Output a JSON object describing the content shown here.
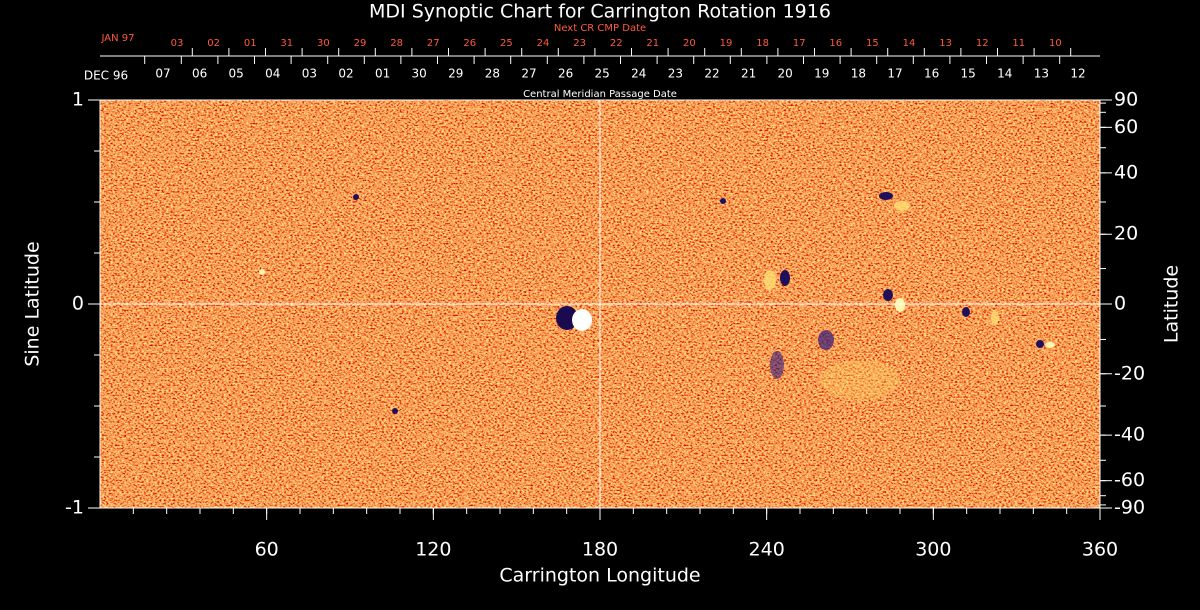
{
  "chart_data": {
    "type": "synoptic-map",
    "title": "MDI Synoptic Chart for Carrington Rotation 1916",
    "xlabel": "Carrington Longitude",
    "ylabel": "Sine Latitude",
    "y2label": "Latitude",
    "xlim": [
      0,
      360
    ],
    "xticks": [
      60,
      120,
      180,
      240,
      300,
      360
    ],
    "ylim": [
      -1,
      1
    ],
    "yticks": [
      -1,
      0,
      1
    ],
    "y2lim": [
      -90,
      90
    ],
    "y2scale": "sine",
    "y2ticks": [
      90,
      60,
      40,
      20,
      0,
      -20,
      -40,
      -60,
      -90
    ],
    "center_lines": true,
    "cmp_dates": {
      "label": "Central Meridian Passage Date",
      "month": "DEC 96",
      "days": [
        "07",
        "06",
        "05",
        "04",
        "03",
        "02",
        "01",
        "30",
        "29",
        "28",
        "27",
        "26",
        "25",
        "24",
        "23",
        "22",
        "21",
        "20",
        "19",
        "18",
        "17",
        "16",
        "15",
        "14",
        "13",
        "12"
      ]
    },
    "next_cmp_dates": {
      "label": "Next CR CMP Date",
      "month": "JAN 97",
      "days": [
        "03",
        "02",
        "01",
        "31",
        "30",
        "29",
        "28",
        "27",
        "26",
        "25",
        "24",
        "23",
        "22",
        "21",
        "20",
        "19",
        "18",
        "17",
        "16",
        "15",
        "14",
        "13",
        "12",
        "11",
        "10"
      ]
    }
  }
}
